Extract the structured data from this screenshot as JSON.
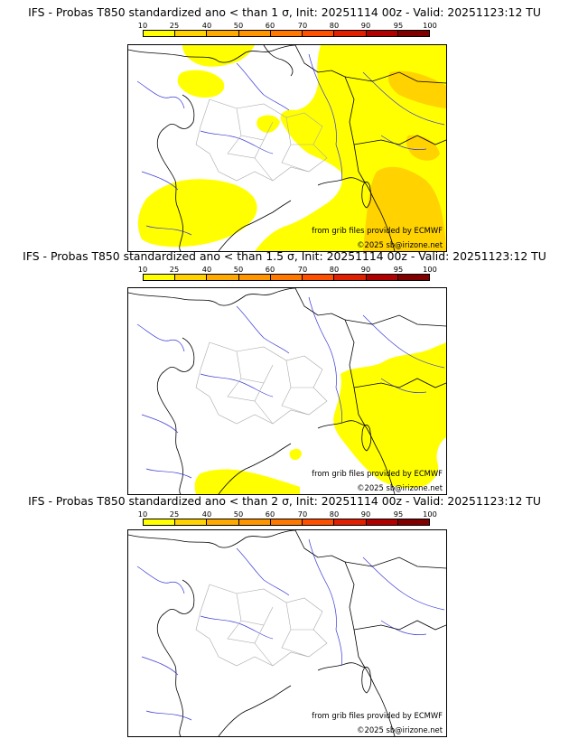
{
  "legend": {
    "ticks": [
      "10",
      "25",
      "40",
      "50",
      "60",
      "70",
      "80",
      "90",
      "95",
      "100"
    ],
    "colors": [
      "#ffff00",
      "#ffd200",
      "#ffaa00",
      "#ff9600",
      "#ff7800",
      "#ff5000",
      "#e02000",
      "#b00000",
      "#800000"
    ]
  },
  "panels": [
    {
      "title": "IFS - Probas T850  standardized ano < than 1 σ, Init: 20251114 00z - Valid: 20251123:12 TU",
      "credit_source": "from grib files provided by ECMWF",
      "credit_copyright": "©2025 sb@irizone.net"
    },
    {
      "title": "IFS - Probas T850  standardized ano < than 1.5 σ, Init: 20251114 00z - Valid: 20251123:12 TU",
      "credit_source": "from grib files provided by ECMWF",
      "credit_copyright": "©2025 sb@irizone.net"
    },
    {
      "title": "IFS - Probas T850  standardized ano < than 2 σ, Init: 20251114 00z - Valid: 20251123:12 TU",
      "credit_source": "from grib files provided by ECMWF",
      "credit_copyright": "©2025 sb@irizone.net"
    }
  ],
  "fill_colors": {
    "yellow": "#ffff00",
    "amber": "#ffd200"
  },
  "line_colors": {
    "coast": "#000000",
    "river": "#3a3ad8",
    "border": "#aaaaaa"
  }
}
